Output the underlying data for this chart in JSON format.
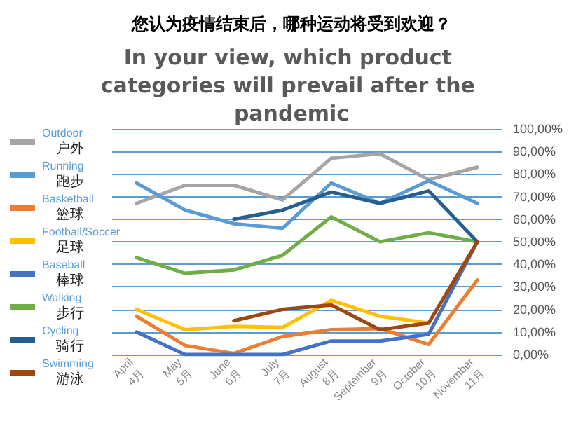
{
  "chart_data": {
    "type": "line",
    "title": "您认为疫情结束后，哪种运动将受到欢迎？",
    "subtitle": "In your view, which product categories will prevail after the pandemic",
    "categories": [
      "April\n4月",
      "May\n5月",
      "June\n6月",
      "July\n7月",
      "August\n8月",
      "September\n9月",
      "October\n10月",
      "November\n11月"
    ],
    "series": [
      {
        "name": "Outdoor\n户外",
        "color": "#a5a5a5",
        "values": [
          67,
          75,
          75,
          68.5,
          87,
          89,
          77.5,
          83
        ]
      },
      {
        "name": "Running\n跑步",
        "color": "#5b9bd5",
        "values": [
          76,
          64,
          58,
          56,
          76,
          67,
          77,
          67
        ]
      },
      {
        "name": "Basketball\n篮球",
        "color": "#ed7d31",
        "values": [
          17,
          4,
          0.5,
          8,
          11,
          11.5,
          4.5,
          33
        ]
      },
      {
        "name": "Football/Soccer\n足球",
        "color": "#ffc000",
        "values": [
          20,
          11,
          12.5,
          12,
          24,
          17,
          14,
          null
        ]
      },
      {
        "name": "Baseball\n棒球",
        "color": "#4472c4",
        "values": [
          10,
          0,
          0,
          0,
          6,
          6,
          9,
          50
        ]
      },
      {
        "name": "Walking\n步行",
        "color": "#70ad47",
        "values": [
          43,
          36,
          37.5,
          44,
          61,
          50,
          54,
          50
        ]
      },
      {
        "name": "Cycling\n骑行",
        "color": "#255e91",
        "values": [
          null,
          null,
          60,
          64,
          72,
          67,
          72.5,
          50
        ]
      },
      {
        "name": "Swimming\n游泳",
        "color": "#9e480e",
        "values": [
          null,
          null,
          15,
          20,
          22,
          11,
          14,
          50
        ]
      }
    ],
    "ylim": [
      0,
      100
    ],
    "yticks": [
      {
        "value": 0,
        "label": "0,00%"
      },
      {
        "value": 10,
        "label": "10,00%"
      },
      {
        "value": 20,
        "label": "20,00%"
      },
      {
        "value": 30,
        "label": "30,00%"
      },
      {
        "value": 40,
        "label": "40,00%"
      },
      {
        "value": 50,
        "label": "50,00%"
      },
      {
        "value": 60,
        "label": "60,00%"
      },
      {
        "value": 70,
        "label": "70,00%"
      },
      {
        "value": 80,
        "label": "80,00%"
      },
      {
        "value": 90,
        "label": "90,00%"
      },
      {
        "value": 100,
        "label": "100,00%"
      }
    ],
    "grid": "y",
    "legend": "left",
    "marker": "none",
    "line_style": "solid"
  }
}
